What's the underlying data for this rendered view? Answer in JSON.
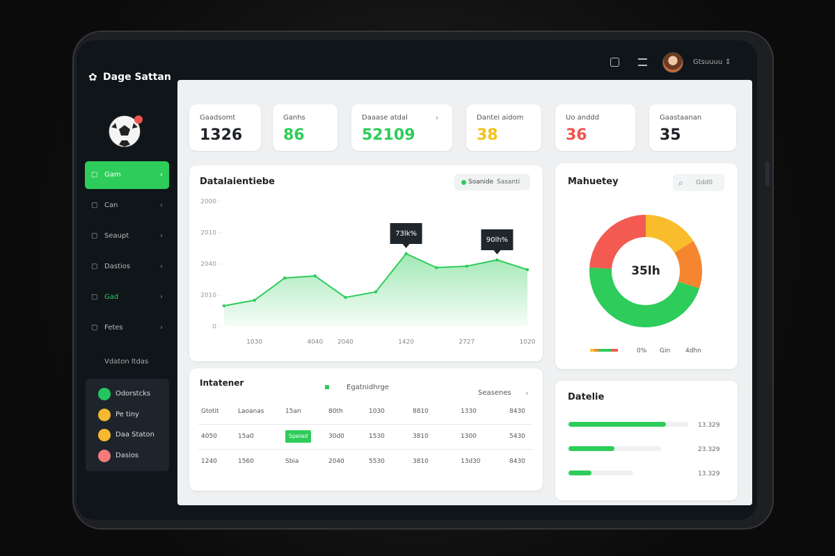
{
  "brand": "Dage Sattan",
  "user": "Gtsuuuu",
  "nav": {
    "items": [
      "Gam",
      "Can",
      "Seaupt",
      "Dastios",
      "Gad",
      "Fetes"
    ],
    "section": "Vdaton ltdas"
  },
  "status": {
    "items": [
      {
        "label": "Odorstcks",
        "color": "#22c55e"
      },
      {
        "label": "Pe tiny",
        "color": "#f5b82e"
      },
      {
        "label": "Daa Staton",
        "color": "#f5b82e"
      },
      {
        "label": "Dasios",
        "color": "#f27a7a"
      }
    ]
  },
  "stats": [
    {
      "label": "Gaadsomt",
      "value": "1326",
      "color": "#1f2328"
    },
    {
      "label": "Ganhs",
      "value": "86",
      "color": "#2ecc5a"
    },
    {
      "label": "Daaase atdal",
      "value": "52109",
      "color": "#2ecc5a"
    },
    {
      "label": "Dantei aidom",
      "value": "38",
      "color": "#f2c21b"
    },
    {
      "label": "Uo anddd",
      "value": "36",
      "color": "#ef5350"
    },
    {
      "label": "Gaastaanan",
      "value": "35",
      "color": "#1f2328"
    }
  ],
  "line_chart": {
    "type": "line",
    "title": "Datalaientiebe",
    "legend": [
      "Soanide",
      "Sasanti"
    ],
    "categories": [
      null,
      "1030",
      null,
      "4040",
      "2040",
      null,
      "1420",
      null,
      "2727",
      null,
      "1020"
    ],
    "values": [
      333,
      422,
      778,
      811,
      467,
      556,
      1167,
      944,
      967,
      1067,
      911
    ],
    "color": "#2ecc5a",
    "ylim": [
      0,
      2000
    ],
    "yticks": [
      0,
      {
        "value": 500,
        "label": "2010"
      },
      {
        "value": 1000,
        "label": "2040"
      },
      {
        "value": 1500,
        "label": "2010"
      },
      2000
    ],
    "annotations": [
      "73lk%",
      "90lh%"
    ]
  },
  "donut": {
    "type": "pie",
    "title": "Mahuetey",
    "search": "Gdd0",
    "center": "35lh",
    "values": [
      16,
      14,
      46,
      24
    ],
    "colors": [
      "#f9bd2c",
      "#f5852f",
      "#2ecc5a",
      "#f25a52"
    ],
    "legend": [
      "0%",
      "Gin",
      "4dhn"
    ]
  },
  "table": {
    "title": "Intatener",
    "legend": "Egatnidhrge",
    "link": "Seasenes",
    "rows": [
      [
        "Gtotit",
        "Laoanas",
        "15an",
        "80th",
        "1030",
        "8810",
        "1330",
        "8430"
      ],
      [
        "4050",
        "15a0",
        "Speiad",
        "30d0",
        "1530",
        "3810",
        "1300",
        "5430"
      ],
      [
        "1240",
        "1560",
        "Sbia",
        "2040",
        "5530",
        "3810",
        "13d30",
        "8430"
      ]
    ]
  },
  "progress": {
    "title": "Datelie",
    "values": [
      81,
      38,
      19
    ],
    "labels": [
      "13.329",
      "23.329",
      "13.329"
    ],
    "color": "#2ecc5a"
  }
}
